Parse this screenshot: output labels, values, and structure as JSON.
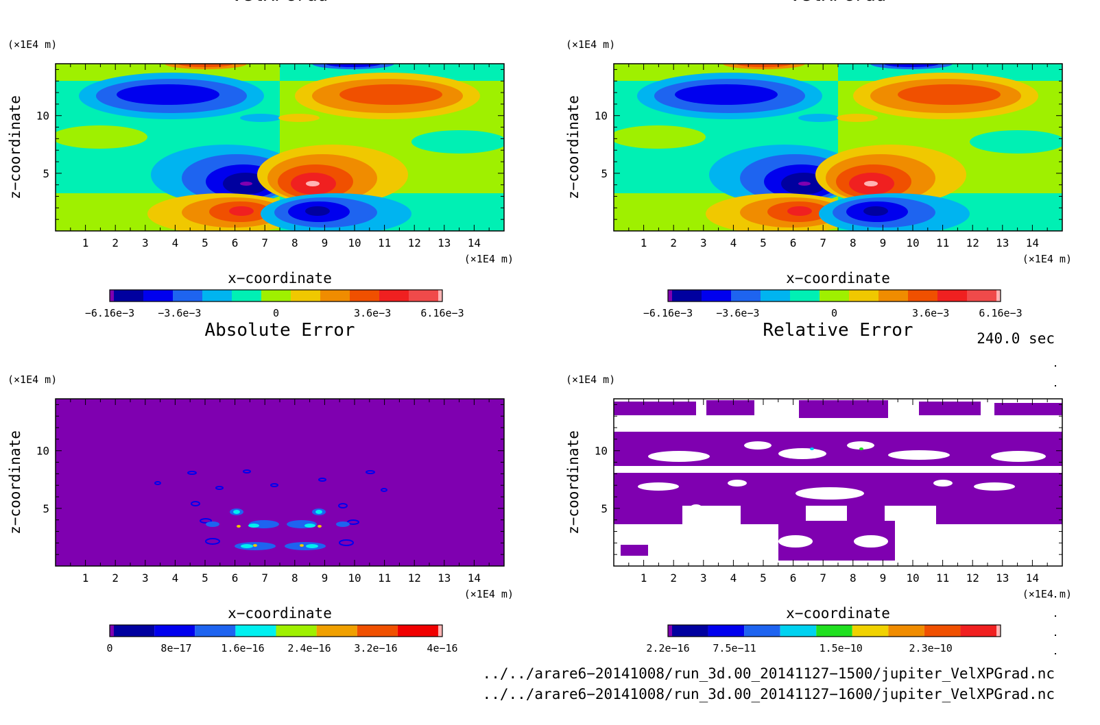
{
  "chart_data": [
    {
      "type": "heatmap",
      "title": "VelXPGrad",
      "xlabel": "x−coordinate",
      "ylabel": "z−coordinate",
      "x_unit": "(×1E4 m)",
      "y_unit": "(×1E4 m)",
      "xlim": [
        0,
        15
      ],
      "ylim": [
        0,
        14.5
      ],
      "x_ticks": [
        "1",
        "2",
        "3",
        "4",
        "5",
        "6",
        "7",
        "8",
        "9",
        "10",
        "11",
        "12",
        "13",
        "14"
      ],
      "y_ticks": [
        "5",
        "10"
      ],
      "colorbar": {
        "colors": [
          "#7f00b0",
          "#00009f",
          "#0000ee",
          "#1e64f0",
          "#00b4f0",
          "#00f0b4",
          "#9ff000",
          "#f0c800",
          "#f08c00",
          "#f05000",
          "#f02020",
          "#f04a4a",
          "#ffb4b4"
        ],
        "labels": [
          "−6.16e−3",
          "−3.6e−3",
          "0",
          "3.6e−3",
          "6.16e−3"
        ]
      }
    },
    {
      "type": "heatmap",
      "title": "VelXPGrad",
      "xlabel": "x−coordinate",
      "ylabel": "z−coordinate",
      "x_unit": "(×1E4 m)",
      "y_unit": "(×1E4 m)",
      "xlim": [
        0,
        15
      ],
      "ylim": [
        0,
        14.5
      ],
      "x_ticks": [
        "1",
        "2",
        "3",
        "4",
        "5",
        "6",
        "7",
        "8",
        "9",
        "10",
        "11",
        "12",
        "13",
        "14"
      ],
      "y_ticks": [
        "5",
        "10"
      ],
      "colorbar": {
        "colors": [
          "#7f00b0",
          "#00009f",
          "#0000ee",
          "#1e64f0",
          "#00b4f0",
          "#00f0b4",
          "#9ff000",
          "#f0c800",
          "#f08c00",
          "#f05000",
          "#f02020",
          "#f04a4a",
          "#ffb4b4"
        ],
        "labels": [
          "−6.16e−3",
          "−3.6e−3",
          "0",
          "3.6e−3",
          "6.16e−3"
        ]
      }
    },
    {
      "type": "heatmap",
      "title": "Absolute Error",
      "xlabel": "x−coordinate",
      "ylabel": "z−coordinate",
      "x_unit": "(×1E4 m)",
      "y_unit": "(×1E4 m)",
      "xlim": [
        0,
        15
      ],
      "ylim": [
        0,
        14.5
      ],
      "x_ticks": [
        "1",
        "2",
        "3",
        "4",
        "5",
        "6",
        "7",
        "8",
        "9",
        "10",
        "11",
        "12",
        "13",
        "14"
      ],
      "y_ticks": [
        "5",
        "10"
      ],
      "colorbar": {
        "colors": [
          "#7f00b0",
          "#00009f",
          "#0000ee",
          "#1e64f0",
          "#00f0f0",
          "#9ff000",
          "#f0a000",
          "#f05000",
          "#f00000",
          "#ffb4b4"
        ],
        "labels": [
          "0",
          "8e−17",
          "1.6e−16",
          "2.4e−16",
          "3.2e−16",
          "4e−16"
        ]
      }
    },
    {
      "type": "heatmap",
      "title": "Relative Error",
      "xlabel": "x−coordinate",
      "ylabel": "z−coordinate",
      "x_unit": "(×1E4 m)",
      "y_unit": "(×1E4 m)",
      "xlim": [
        0,
        15
      ],
      "ylim": [
        0,
        14.5
      ],
      "x_ticks": [
        "1",
        "2",
        "3",
        "4",
        "5",
        "6",
        "7",
        "8",
        "9",
        "10",
        "11",
        "12",
        "13",
        "14"
      ],
      "y_ticks": [
        "5",
        "10"
      ],
      "colorbar": {
        "colors": [
          "#7f00b0",
          "#00009f",
          "#0000ee",
          "#1e64f0",
          "#00d2f0",
          "#20e020",
          "#f0d200",
          "#f08c00",
          "#f05000",
          "#f02020",
          "#ffb4b4"
        ],
        "labels": [
          "2.2e−16",
          "7.5e−11",
          "1.5e−10",
          "2.3e−10"
        ]
      }
    }
  ],
  "time_label": "240.0 sec",
  "files": [
    "../../arare6−20141008/run_3d.00_20141127−1500/jupiter_VelXPGrad.nc",
    "../../arare6−20141008/run_3d.00_20141127−1600/jupiter_VelXPGrad.nc"
  ]
}
